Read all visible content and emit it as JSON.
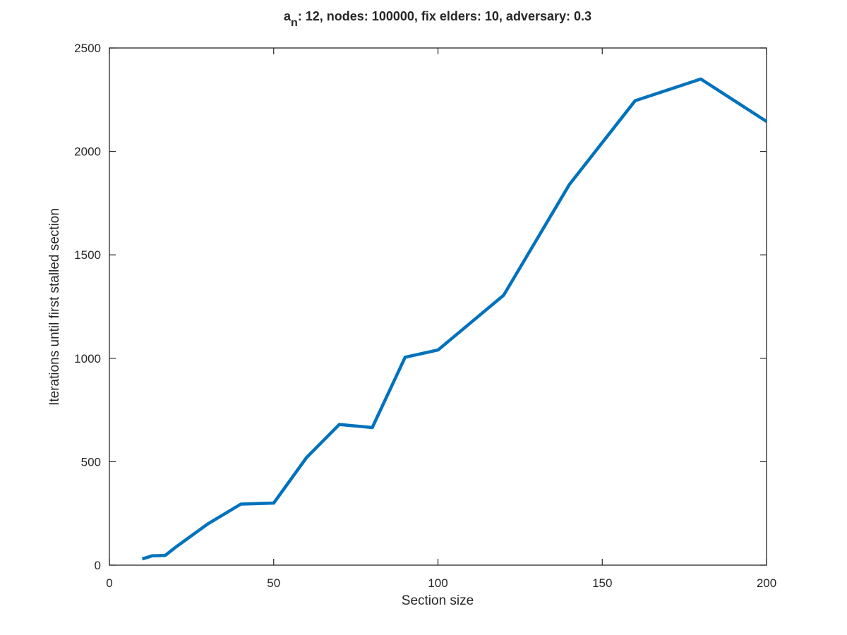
{
  "chart_data": {
    "type": "line",
    "title": {
      "base": "a",
      "subscript": "n",
      "rest": ": 12, nodes: 100000, fix elders: 10, adversary: 0.3"
    },
    "xlabel": "Section size",
    "ylabel": "Iterations until first stalled section",
    "xlim": [
      0,
      200
    ],
    "ylim": [
      0,
      2500
    ],
    "xticks": [
      0,
      50,
      100,
      150,
      200
    ],
    "yticks": [
      0,
      500,
      1000,
      1500,
      2000,
      2500
    ],
    "grid": false,
    "series": [
      {
        "color": "#0072bd",
        "x": [
          10,
          13,
          17,
          20,
          30,
          40,
          50,
          60,
          70,
          80,
          90,
          100,
          120,
          140,
          160,
          180,
          200
        ],
        "y": [
          30,
          45,
          47,
          85,
          200,
          295,
          300,
          520,
          680,
          665,
          1005,
          1040,
          1305,
          1840,
          2245,
          2350,
          2145
        ]
      }
    ]
  }
}
